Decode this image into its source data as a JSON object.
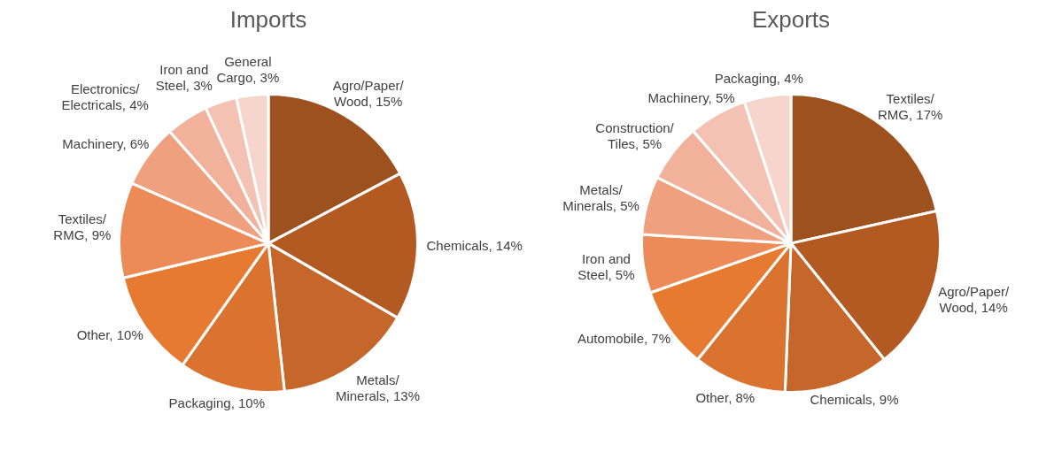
{
  "chart_data": [
    {
      "type": "pie",
      "title": "Imports",
      "categories": [
        "Agro/Paper/Wood",
        "Chemicals",
        "Metals/Minerals",
        "Packaging",
        "Other",
        "Textiles/RMG",
        "Machinery",
        "Electronics/Electricals",
        "Iron and Steel",
        "General Cargo"
      ],
      "values": [
        15,
        14,
        13,
        10,
        10,
        9,
        6,
        4,
        3,
        3
      ],
      "value_labels": [
        "15%",
        "14%",
        "13%",
        "10%",
        "10%",
        "9%",
        "6%",
        "4%",
        "3%",
        "3%"
      ],
      "colors": [
        "#9c511e",
        "#b35a23",
        "#c5672a",
        "#d9732f",
        "#e67a31",
        "#ec8b57",
        "#efa07e",
        "#f1b19a",
        "#f3c2b3",
        "#f5d5cc"
      ],
      "legend": false
    },
    {
      "type": "pie",
      "title": "Exports",
      "categories": [
        "Textiles/RMG",
        "Agro/Paper/Wood",
        "Chemicals",
        "Other",
        "Automobile",
        "Iron and Steel",
        "Metals/Minerals",
        "Construction/Tiles",
        "Machinery",
        "Packaging"
      ],
      "values": [
        17,
        14,
        9,
        8,
        7,
        5,
        5,
        5,
        5,
        4
      ],
      "value_labels": [
        "17%",
        "14%",
        "9%",
        "8%",
        "7%",
        "5%",
        "5%",
        "5%",
        "5%",
        "4%"
      ],
      "colors": [
        "#9c511e",
        "#b35a23",
        "#c5672a",
        "#d9732f",
        "#e67a31",
        "#ec8b57",
        "#efa07e",
        "#f1b19a",
        "#f3c2b3",
        "#f5d5cc"
      ],
      "legend": false
    }
  ]
}
